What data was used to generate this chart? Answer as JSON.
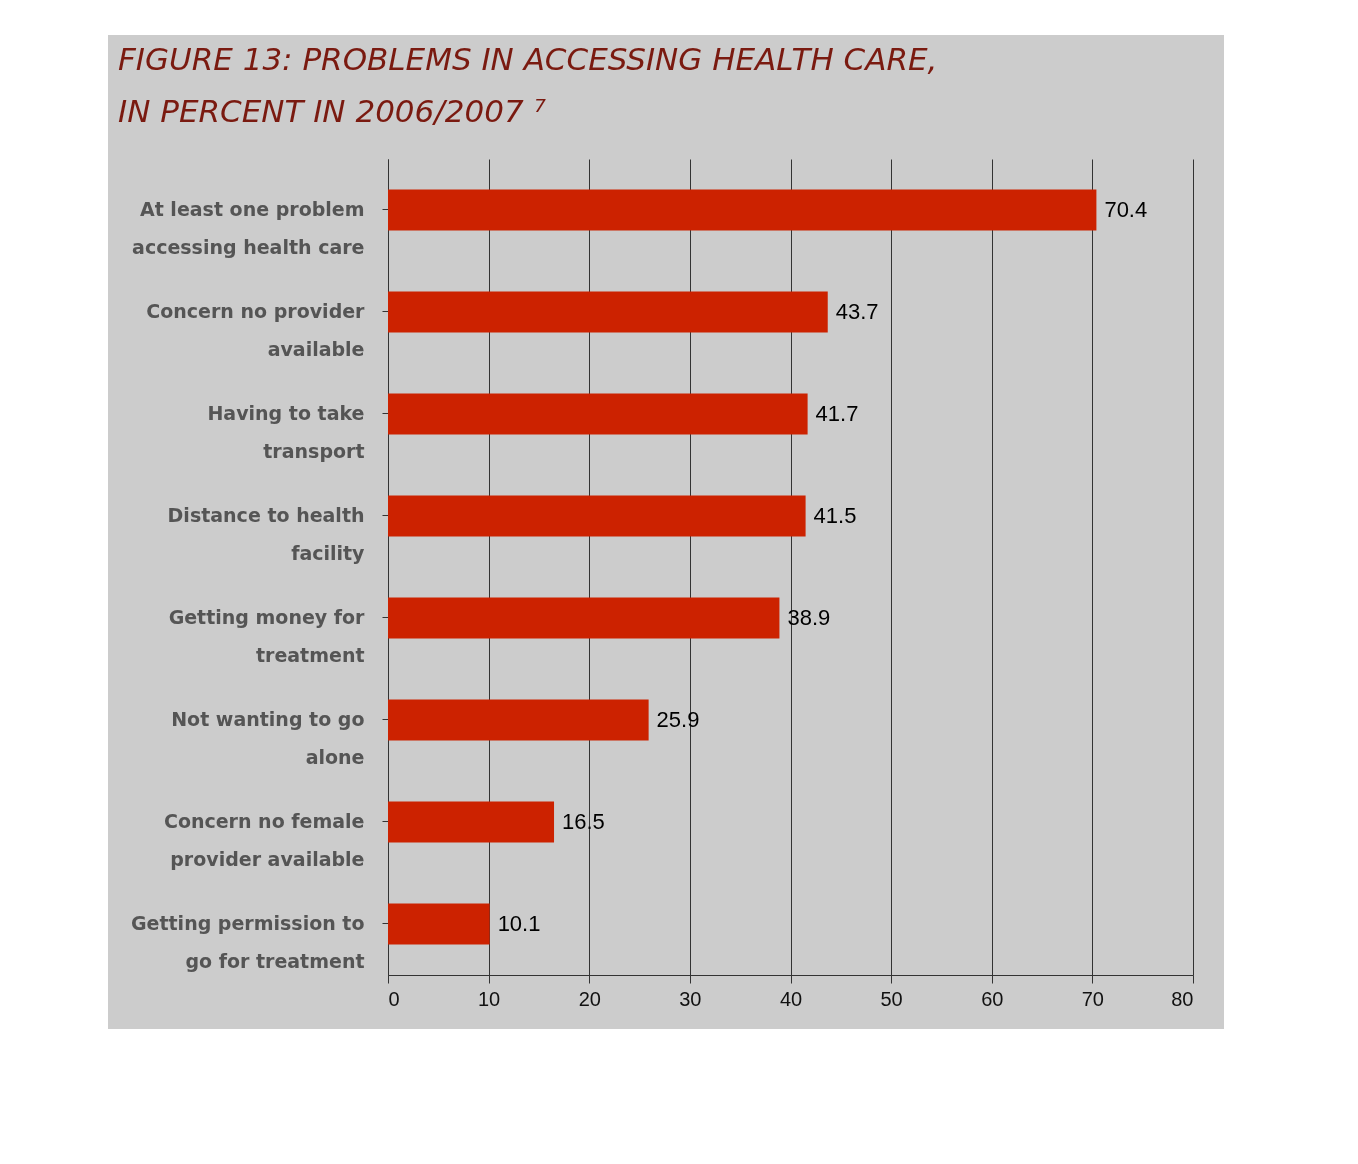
{
  "chart_data": {
    "type": "bar",
    "orientation": "horizontal",
    "title": "FIGURE 13:  PROBLEMS IN ACCESSING HEALTH CARE, IN PERCENT  IN 2006/2007 ⁷",
    "categories": [
      "At least one problem accessing health care",
      "Concern no provider available",
      "Having to take transport",
      "Distance to health facility",
      "Getting money for treatment",
      "Not wanting to go alone",
      "Concern no female provider available",
      "Getting permission to go for treatment"
    ],
    "values": [
      70.4,
      43.7,
      41.7,
      41.5,
      38.9,
      25.9,
      16.5,
      10.1
    ],
    "color": "#cc2200",
    "xlim": [
      0,
      80
    ],
    "xticks": [
      0,
      10,
      20,
      30,
      40,
      50,
      60,
      70,
      80
    ],
    "grid": "x",
    "data_labels": true
  }
}
